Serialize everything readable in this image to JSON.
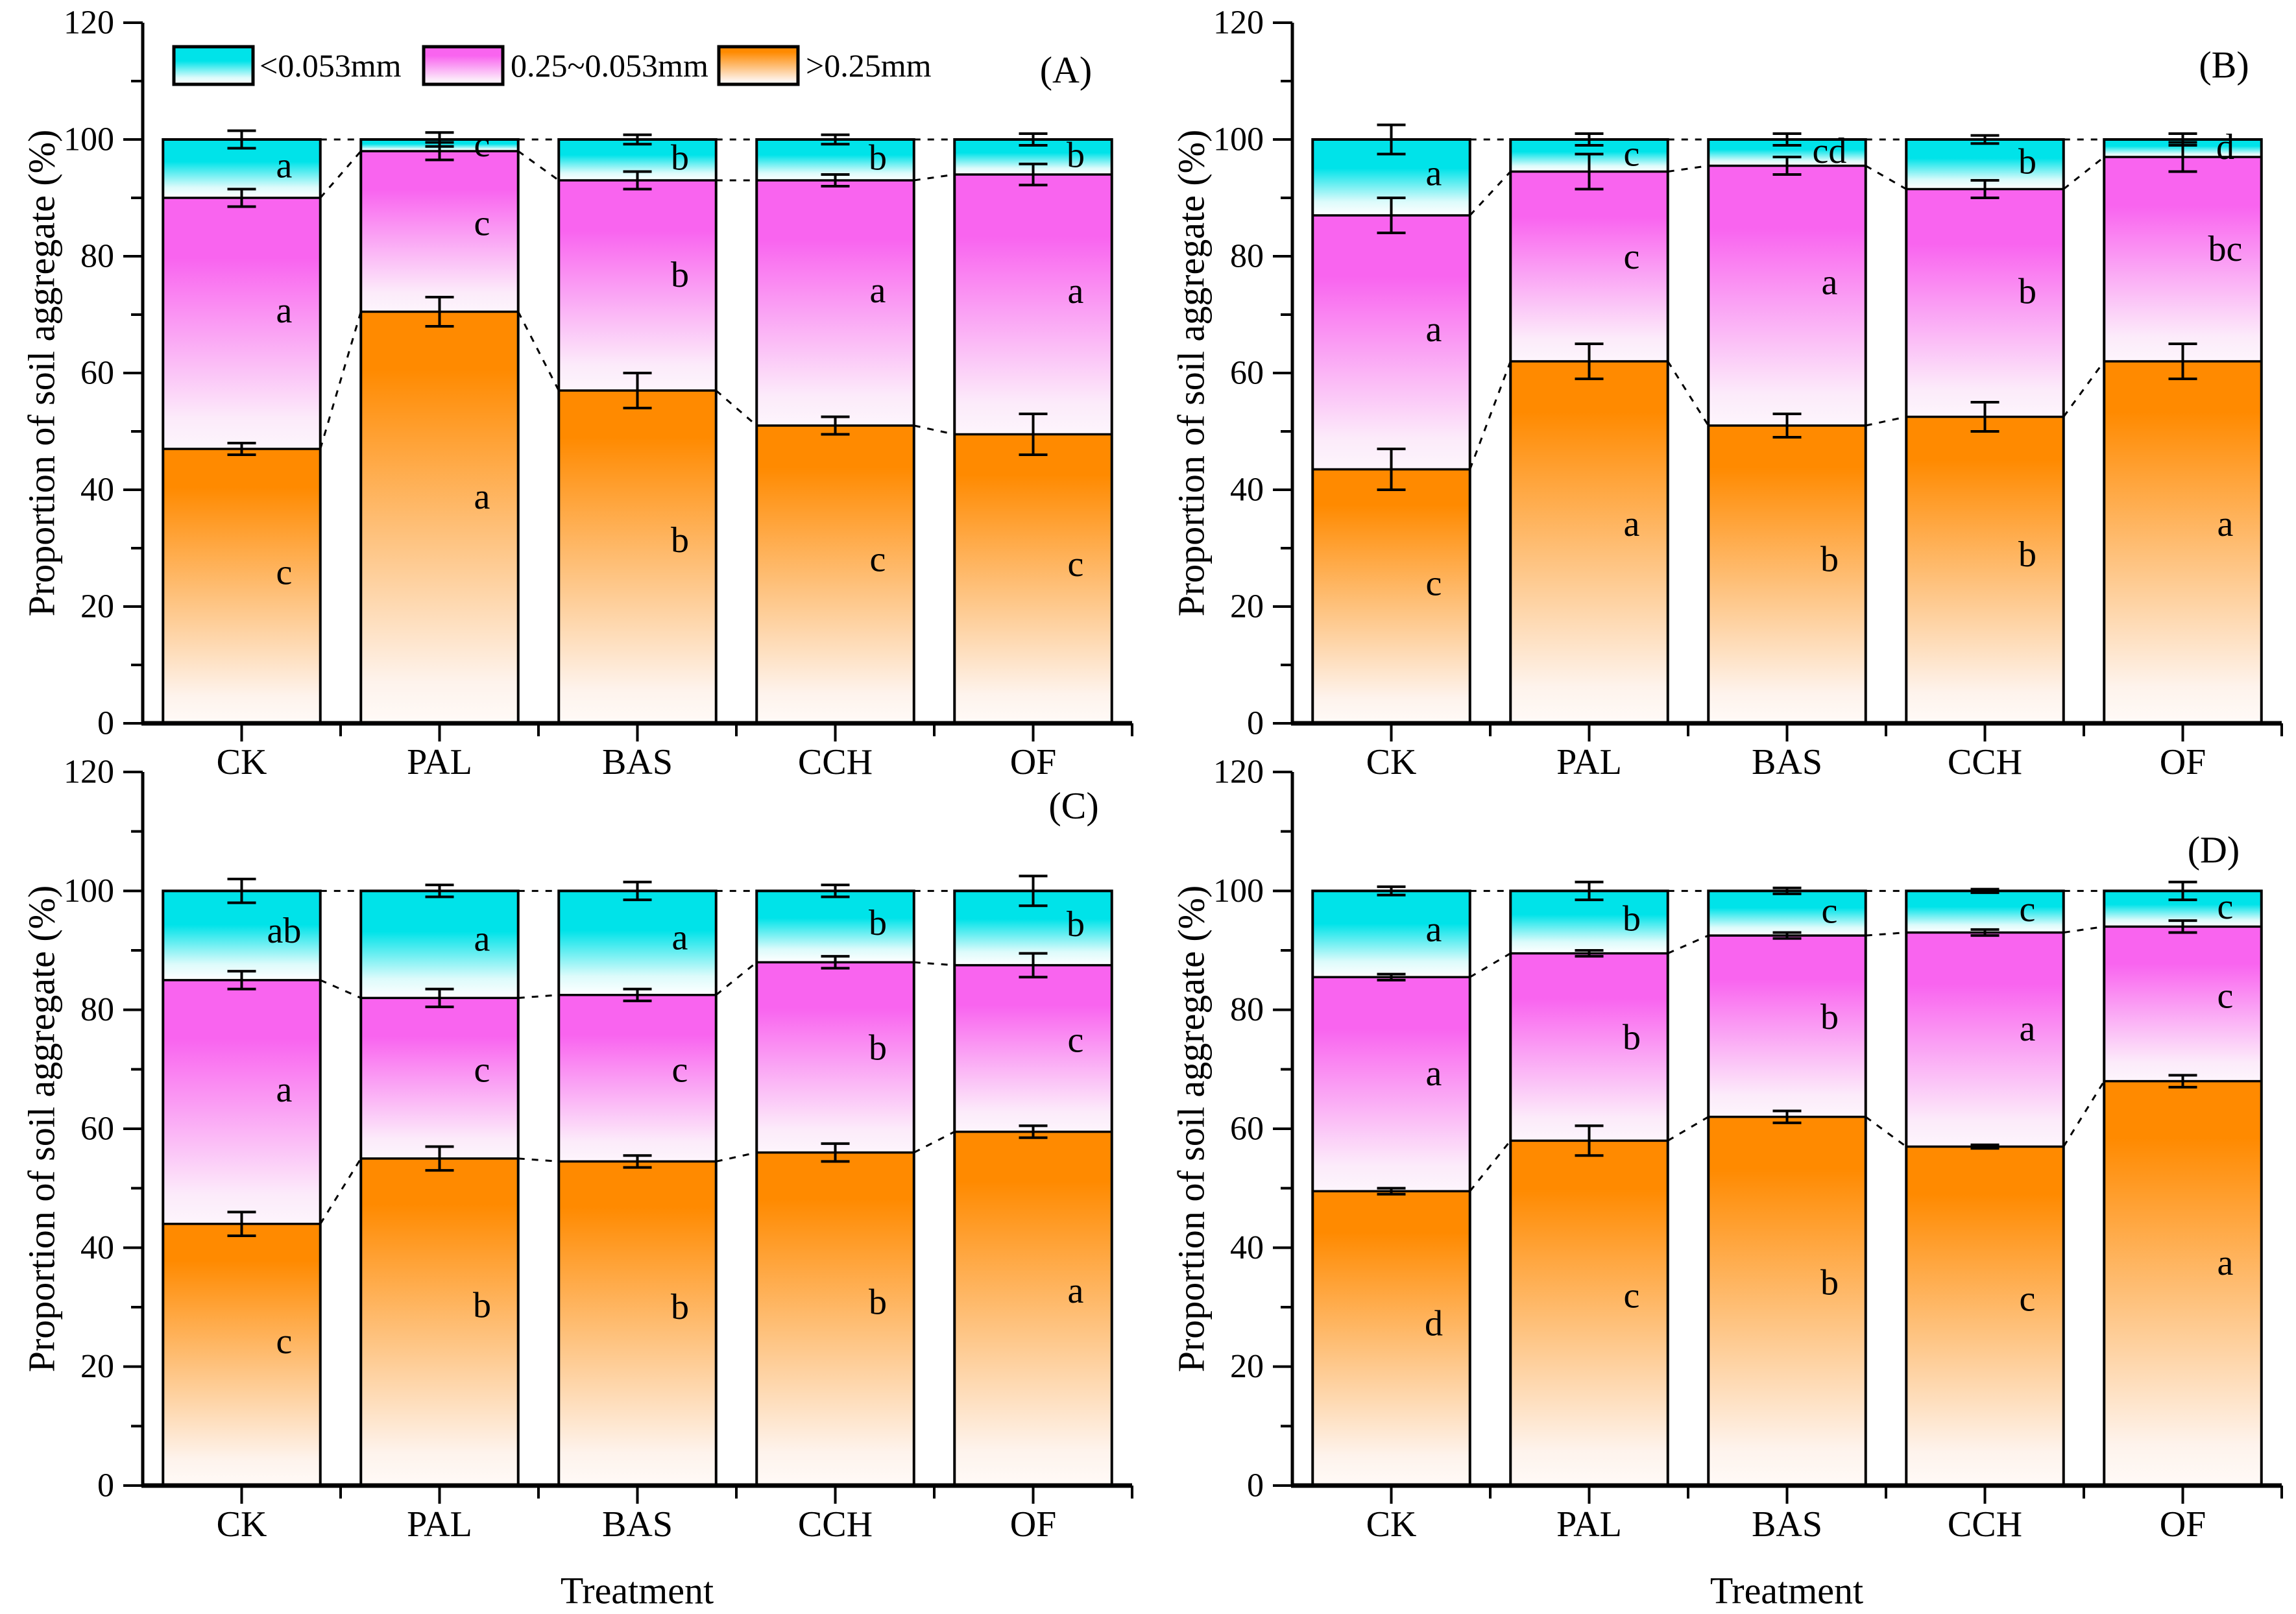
{
  "figure": {
    "ylabel": "Proportion of soil aggregate (%)",
    "xlabel": "Treatment",
    "legend": [
      {
        "label": "<0.053mm",
        "color_key": "lt053"
      },
      {
        "label": "0.25~0.053mm",
        "color_key": "mid"
      },
      {
        "label": ">0.25mm",
        "color_key": "gt025"
      }
    ],
    "colors": {
      "lt053_top": "#00e3e9",
      "mid_top": "#f964ef",
      "gt025_top": "#ff8a00",
      "axis": "#000000",
      "background": "#ffffff"
    },
    "y_axis": {
      "min": 0,
      "max": 120,
      "major_step": 20,
      "minor_step": 10
    }
  },
  "chart_data": [
    {
      "panel_label": "(A)",
      "type": "stacked-bar",
      "categories": [
        "CK",
        "PAL",
        "BAS",
        "CCH",
        "OF"
      ],
      "ylim": [
        0,
        120
      ],
      "grid": false,
      "legend_position": "top-left-inside",
      "series": [
        {
          "name": ">0.25mm",
          "values": [
            47,
            70.5,
            57,
            51,
            49.5
          ],
          "errors": [
            1,
            2.5,
            3,
            1.5,
            3.5
          ],
          "letters": [
            "c",
            "a",
            "b",
            "c",
            "c"
          ]
        },
        {
          "name": "0.25~0.053mm",
          "values": [
            43,
            27.5,
            36,
            42,
            44.5
          ],
          "errors": [
            1.5,
            1.5,
            1.5,
            1,
            1.8
          ],
          "letters": [
            "a",
            "c",
            "b",
            "a",
            "a"
          ]
        },
        {
          "name": "<0.053mm",
          "values": [
            10,
            2,
            7,
            7,
            6
          ],
          "errors": [
            1.5,
            1.2,
            0.8,
            0.8,
            1
          ],
          "letters": [
            "a",
            "c",
            "b",
            "b",
            "b"
          ]
        }
      ]
    },
    {
      "panel_label": "(B)",
      "type": "stacked-bar",
      "categories": [
        "CK",
        "PAL",
        "BAS",
        "CCH",
        "OF"
      ],
      "ylim": [
        0,
        120
      ],
      "grid": false,
      "series": [
        {
          "name": ">0.25mm",
          "values": [
            43.5,
            62,
            51,
            52.5,
            62
          ],
          "errors": [
            3.5,
            3,
            2,
            2.5,
            3
          ],
          "letters": [
            "c",
            "a",
            "b",
            "b",
            "a"
          ]
        },
        {
          "name": "0.25~0.053mm",
          "values": [
            43.5,
            32.5,
            44.5,
            39,
            35
          ],
          "errors": [
            3,
            3,
            1.5,
            1.5,
            2.5
          ],
          "letters": [
            "a",
            "c",
            "a",
            "b",
            "bc"
          ]
        },
        {
          "name": "<0.053mm",
          "values": [
            13,
            5.5,
            4.5,
            8.5,
            3
          ],
          "errors": [
            2.5,
            1,
            1,
            0.7,
            1
          ],
          "letters": [
            "a",
            "c",
            "cd",
            "b",
            "d"
          ]
        }
      ]
    },
    {
      "panel_label": "(C)",
      "type": "stacked-bar",
      "categories": [
        "CK",
        "PAL",
        "BAS",
        "CCH",
        "OF"
      ],
      "ylim": [
        0,
        120
      ],
      "grid": false,
      "series": [
        {
          "name": ">0.25mm",
          "values": [
            44,
            55,
            54.5,
            56,
            59.5
          ],
          "errors": [
            2,
            2,
            1,
            1.5,
            1
          ],
          "letters": [
            "c",
            "b",
            "b",
            "b",
            "a"
          ]
        },
        {
          "name": "0.25~0.053mm",
          "values": [
            41,
            27,
            28,
            32,
            28
          ],
          "errors": [
            1.5,
            1.5,
            1,
            1,
            2
          ],
          "letters": [
            "a",
            "c",
            "c",
            "b",
            "c"
          ]
        },
        {
          "name": "<0.053mm",
          "values": [
            15,
            18,
            17.5,
            12,
            12.5
          ],
          "errors": [
            2,
            1,
            1.5,
            1,
            2.5
          ],
          "letters": [
            "ab",
            "a",
            "a",
            "b",
            "b"
          ]
        }
      ]
    },
    {
      "panel_label": "(D)",
      "type": "stacked-bar",
      "categories": [
        "CK",
        "PAL",
        "BAS",
        "CCH",
        "OF"
      ],
      "ylim": [
        0,
        120
      ],
      "grid": false,
      "series": [
        {
          "name": ">0.25mm",
          "values": [
            49.5,
            58,
            62,
            57,
            68
          ],
          "errors": [
            0.5,
            2.5,
            1,
            0.3,
            1
          ],
          "letters": [
            "d",
            "c",
            "b",
            "c",
            "a"
          ]
        },
        {
          "name": "0.25~0.053mm",
          "values": [
            36,
            31.5,
            30.5,
            36,
            26
          ],
          "errors": [
            0.5,
            0.5,
            0.5,
            0.5,
            1
          ],
          "letters": [
            "a",
            "b",
            "b",
            "a",
            "c"
          ]
        },
        {
          "name": "<0.053mm",
          "values": [
            14.5,
            10.5,
            7.5,
            7,
            6
          ],
          "errors": [
            0.7,
            1.5,
            0.5,
            0.3,
            1.5
          ],
          "letters": [
            "a",
            "b",
            "c",
            "c",
            "c"
          ]
        }
      ]
    }
  ]
}
